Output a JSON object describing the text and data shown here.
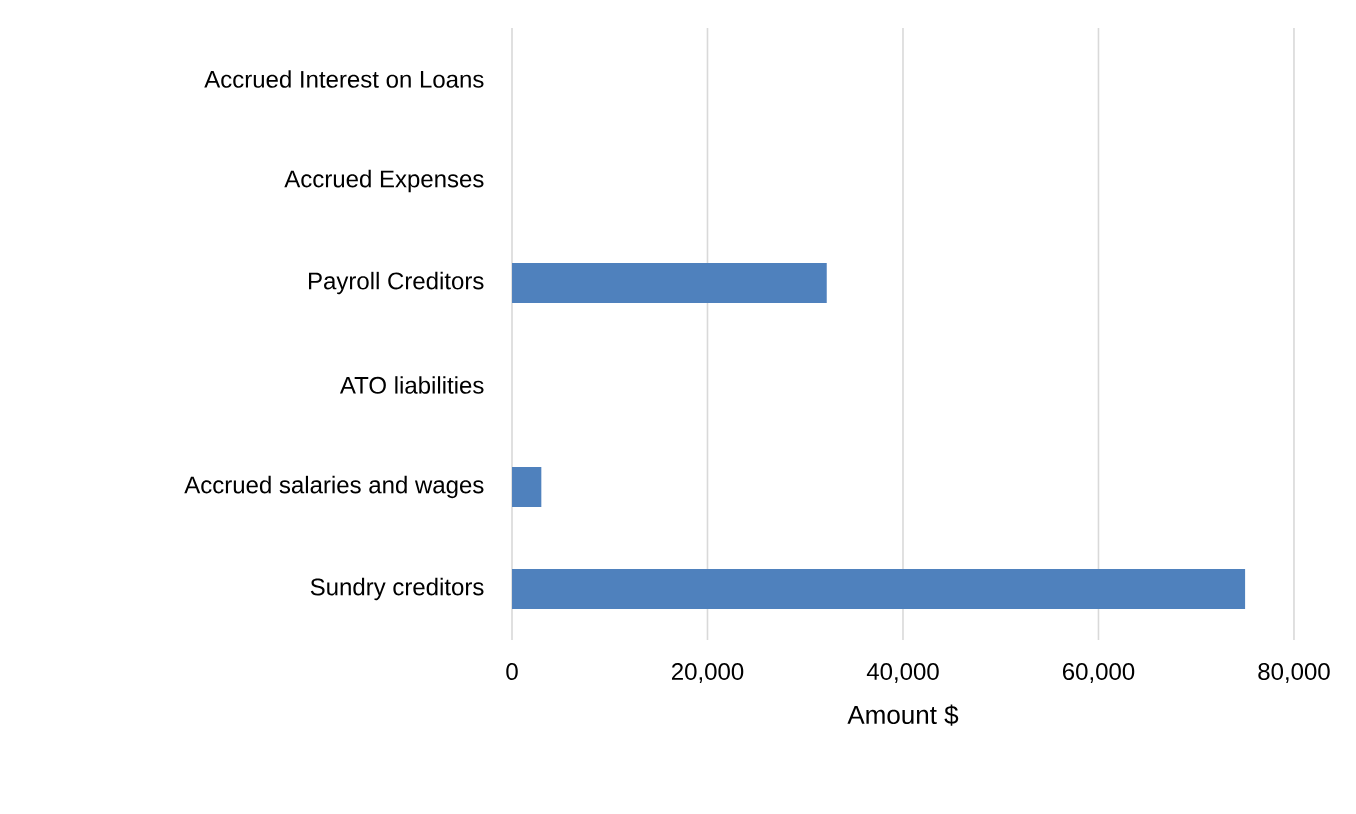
{
  "chart_data": {
    "type": "bar",
    "orientation": "horizontal",
    "xlabel": "Amount $",
    "categories": [
      "Accrued Interest on Loans",
      "Accrued Expenses",
      "Payroll Creditors",
      "ATO liabilities",
      "Accrued salaries and wages",
      "Sundry creditors"
    ],
    "values": [
      0,
      0,
      32200,
      0,
      3000,
      75000
    ],
    "color": "#4f81bd",
    "xlim": [
      0,
      80000
    ],
    "xticks": [
      {
        "value": 0,
        "label": "0"
      },
      {
        "value": 20000,
        "label": "20,000"
      },
      {
        "value": 40000,
        "label": "40,000"
      },
      {
        "value": 60000,
        "label": "60,000"
      },
      {
        "value": 80000,
        "label": "80,000"
      }
    ],
    "grid": "x"
  }
}
